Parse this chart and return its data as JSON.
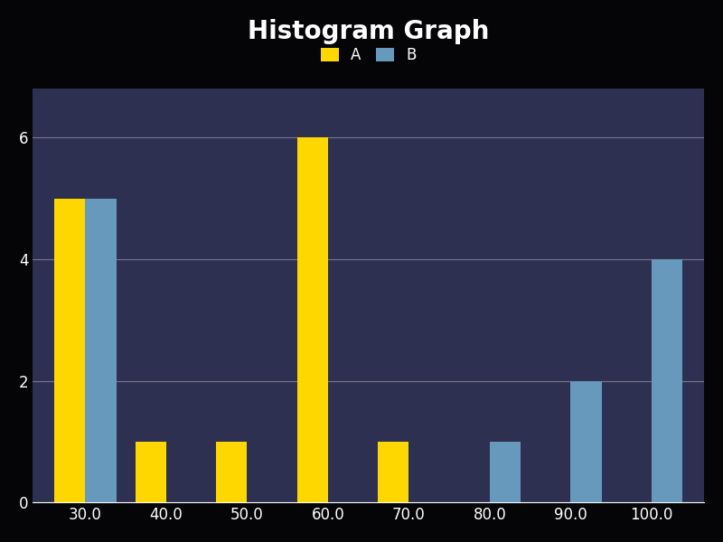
{
  "title": "Histogram Graph",
  "title_fontsize": 20,
  "title_color": "#ffffff",
  "title_fontweight": "bold",
  "categories": [
    30.0,
    40.0,
    50.0,
    60.0,
    70.0,
    80.0,
    90.0,
    100.0
  ],
  "series_A": [
    5,
    1,
    1,
    6,
    1,
    0,
    0,
    0
  ],
  "series_B": [
    5,
    0,
    0,
    0,
    0,
    1,
    2,
    4
  ],
  "color_A": "#FFD700",
  "color_B": "#6699BB",
  "legend_labels": [
    "A",
    "B"
  ],
  "ylim": [
    0,
    6.8
  ],
  "yticks": [
    0,
    2,
    4,
    6
  ],
  "grid_color": "#ffffff",
  "grid_alpha": 0.35,
  "grid_linewidth": 0.8,
  "bar_width": 0.38,
  "fig_bg": "#050508",
  "plot_bg": "#2d3050",
  "tick_color": "#ffffff",
  "tick_fontsize": 12,
  "legend_fontsize": 12,
  "legend_text_color": "#ffffff"
}
